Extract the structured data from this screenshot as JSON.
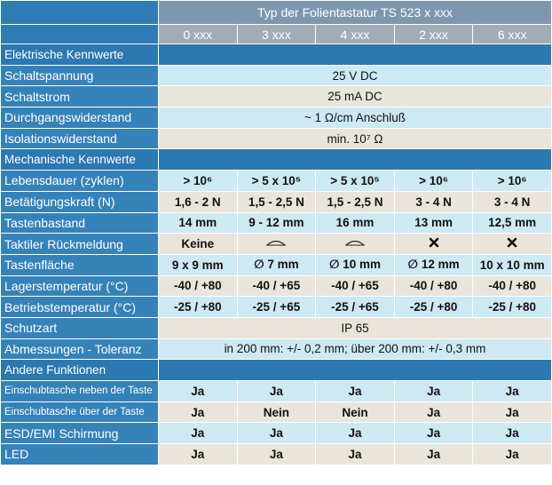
{
  "header": {
    "title": "Typ der Folientastatur TS 523 x xxx",
    "columns": [
      "0 xxx",
      "3 xxx",
      "4 xxx",
      "2 xxx",
      "6 xxx"
    ]
  },
  "sections": [
    {
      "title": "Elektrische Kennwerte",
      "rows": [
        {
          "label": "Schaltspannung",
          "cells": [
            "25 V DC"
          ]
        },
        {
          "label": "Schaltstrom",
          "cells": [
            "25 mA DC"
          ]
        },
        {
          "label": "Durchgangswiderstand",
          "cells": [
            "~ 1 Ω/cm Anschluß"
          ]
        },
        {
          "label": "Isolationswiderstand",
          "cells": [
            "min. 10⁷ Ω"
          ]
        }
      ]
    },
    {
      "title": "Mechanische Kennwerte",
      "rows": [
        {
          "label": "Lebensdauer (zyklen)",
          "cells": [
            "> 10⁶",
            "> 5 x 10⁵",
            "> 5 x 10⁵",
            "> 10⁶",
            "> 10⁶"
          ]
        },
        {
          "label": "Betätigungskraft (N)",
          "cells": [
            "1,6 - 2 N",
            "1,5 - 2,5 N",
            "1,5 - 2,5 N",
            "3 - 4 N",
            "3 - 4 N"
          ]
        },
        {
          "label": "Tastenbastand",
          "cells": [
            "14 mm",
            "9 - 12 mm",
            "16 mm",
            "13 mm",
            "12,5 mm"
          ]
        },
        {
          "label": "Taktiler Rückmeldung",
          "cells": [
            "Keine",
            null,
            null,
            null,
            null
          ]
        },
        {
          "label": "Tastenfläche",
          "cells": [
            "9 x 9 mm",
            "∅ 7 mm",
            "∅ 10 mm",
            "∅ 12 mm",
            "10 x 10 mm"
          ]
        },
        {
          "label": "Lagerstemperatur   (°C)",
          "cells": [
            "-40 / +80",
            "-40 / +65",
            "-40 / +65",
            "-40 / +80",
            "-40 / +80"
          ]
        },
        {
          "label": "Betriebstemperatur   (°C)",
          "cells": [
            "-25 / +80",
            "-25 / +65",
            "-25 / +65",
            "-25 / +80",
            "-25 / +80"
          ]
        },
        {
          "label": "Schutzart",
          "cells": [
            "IP 65"
          ]
        },
        {
          "label": "Abmessungen - Toleranz",
          "cells": [
            "in 200 mm: +/- 0,2 mm; über 200 mm: +/- 0,3 mm"
          ]
        }
      ]
    },
    {
      "title": "Andere Funktionen",
      "rows": [
        {
          "label": "Einschubtasche neben der Taste",
          "cells": [
            "Ja",
            "Ja",
            "Ja",
            "Ja",
            "Ja"
          ]
        },
        {
          "label": "Einschubtasche über der Taste",
          "cells": [
            "Ja",
            "Nein",
            "Nein",
            "Ja",
            "Ja"
          ]
        },
        {
          "label": "ESD/EMI Schirmung",
          "cells": [
            "Ja",
            "Ja",
            "Ja",
            "Ja",
            "Ja"
          ]
        },
        {
          "label": "LED",
          "cells": [
            "Ja",
            "Ja",
            "Ja",
            "Ja",
            "Ja"
          ]
        }
      ]
    }
  ]
}
